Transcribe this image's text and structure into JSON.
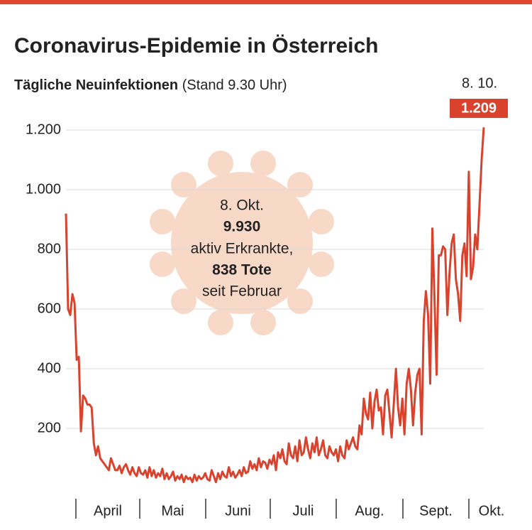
{
  "chart_data": {
    "type": "line",
    "title": "Coronavirus-Epidemie in Österreich",
    "subtitle": "Tägliche Neuinfektionen",
    "subtitle_note": "(Stand 9.30 Uhr)",
    "month_labels": [
      "April",
      "Mai",
      "Juni",
      "Juli",
      "Aug.",
      "Sept.",
      "Okt."
    ],
    "values": [
      920,
      600,
      580,
      650,
      620,
      430,
      440,
      190,
      310,
      300,
      280,
      280,
      270,
      150,
      110,
      140,
      100,
      90,
      80,
      70,
      60,
      100,
      80,
      60,
      60,
      75,
      50,
      70,
      80,
      60,
      45,
      70,
      50,
      40,
      70,
      50,
      45,
      60,
      35,
      70,
      40,
      60,
      35,
      50,
      40,
      65,
      30,
      50,
      30,
      40,
      55,
      25,
      40,
      30,
      45,
      20,
      40,
      30,
      35,
      20,
      45,
      25,
      40,
      30,
      35,
      50,
      30,
      25,
      60,
      40,
      20,
      50,
      30,
      55,
      40,
      35,
      70,
      40,
      55,
      35,
      45,
      60,
      40,
      70,
      50,
      55,
      90,
      65,
      80,
      60,
      100,
      70,
      90,
      85,
      65,
      95,
      80,
      110,
      60,
      120,
      100,
      130,
      90,
      80,
      150,
      110,
      100,
      140,
      90,
      160,
      110,
      120,
      170,
      130,
      100,
      150,
      120,
      170,
      110,
      130,
      160,
      110,
      100,
      140,
      120,
      110,
      130,
      90,
      140,
      110,
      100,
      160,
      130,
      150,
      170,
      140,
      130,
      210,
      180,
      300,
      250,
      230,
      320,
      200,
      290,
      330,
      260,
      270,
      180,
      310,
      330,
      250,
      170,
      280,
      400,
      270,
      210,
      300,
      180,
      350,
      400,
      330,
      210,
      320,
      380,
      400,
      180,
      560,
      660,
      580,
      350,
      870,
      640,
      380,
      780,
      780,
      810,
      800,
      580,
      720,
      820,
      850,
      700,
      650,
      560,
      780,
      820,
      710,
      1060,
      700,
      740,
      850,
      800,
      950,
      1100,
      1209
    ],
    "color": "#d9432e",
    "last_point": {
      "date": "8. 10.",
      "value_label": "1.209"
    },
    "ylim": [
      0,
      1250
    ],
    "yticks": [
      200,
      400,
      600,
      800,
      {
        "value": 1000,
        "label": "1.000"
      },
      {
        "value": 1200,
        "label": "1.200"
      }
    ],
    "grid": true,
    "annotation": {
      "date": "8. Okt.",
      "active": "9.930",
      "active_label": "aktiv Erkrankte,",
      "deaths": "838 Tote",
      "since": "seit Februar"
    }
  }
}
